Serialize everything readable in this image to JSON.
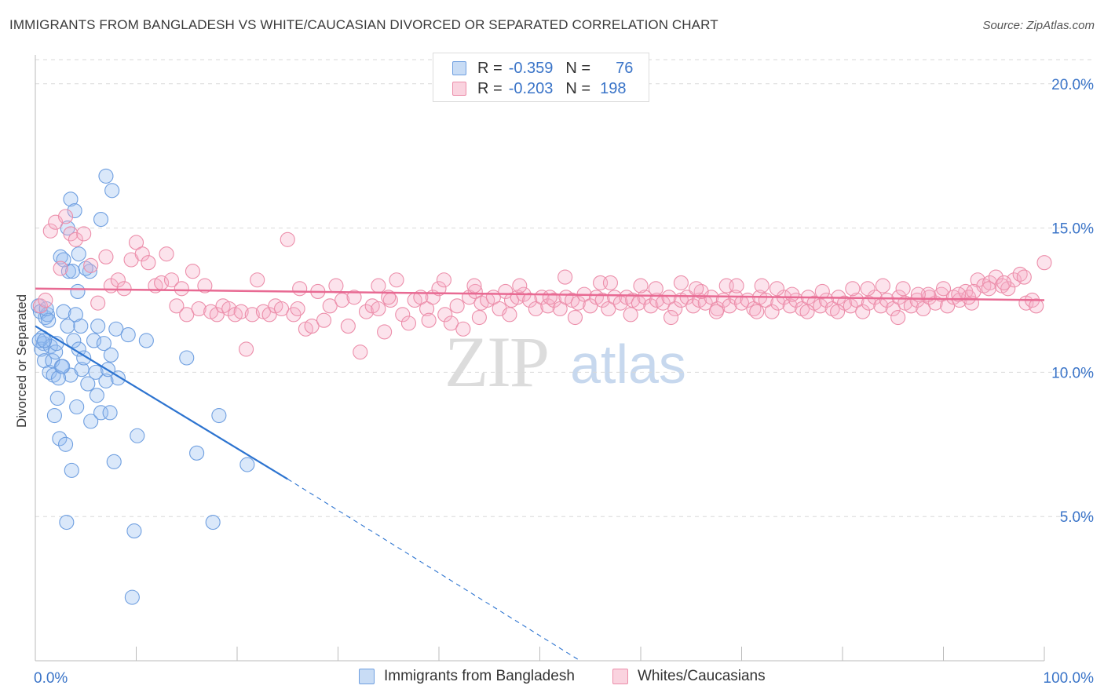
{
  "header": {
    "title": "IMMIGRANTS FROM BANGLADESH VS WHITE/CAUCASIAN DIVORCED OR SEPARATED CORRELATION CHART",
    "source": "Source: ZipAtlas.com"
  },
  "legend_top": {
    "rows": [
      {
        "r_label": "R =",
        "r_value": "-0.359",
        "n_label": "N =",
        "n_value": "76",
        "color": "#a9c8f0",
        "border": "#6f9fe0"
      },
      {
        "r_label": "R =",
        "r_value": "-0.203",
        "n_label": "N =",
        "n_value": "198",
        "color": "#f7bfd0",
        "border": "#ec8eaa"
      }
    ]
  },
  "legend_bottom": {
    "items": [
      {
        "label": "Immigrants from Bangladesh",
        "color": "#a9c8f0",
        "border": "#6f9fe0"
      },
      {
        "label": "Whites/Caucasians",
        "color": "#f7bfd0",
        "border": "#ec8eaa"
      }
    ]
  },
  "watermark": {
    "zip": "ZIP",
    "atlas": "atlas"
  },
  "colors": {
    "blue_fill": "rgba(150,190,240,0.35)",
    "blue_stroke": "#6f9fe0",
    "blue_line": "#2d74d0",
    "pink_fill": "rgba(245,175,200,0.35)",
    "pink_stroke": "#ec8eaa",
    "pink_line": "#e86a93",
    "tick_label": "#3a74c8",
    "grid": "#d9d9d9"
  },
  "chart_data": {
    "type": "scatter",
    "title": "IMMIGRANTS FROM BANGLADESH VS WHITE/CAUCASIAN DIVORCED OR SEPARATED CORRELATION CHART",
    "xlabel": "",
    "ylabel": "Divorced or Separated",
    "xlim": [
      0,
      100
    ],
    "ylim": [
      0,
      21
    ],
    "x_tick_labels": [
      {
        "value": 0,
        "label": "0.0%"
      },
      {
        "value": 100,
        "label": "100.0%"
      }
    ],
    "x_minor_ticks": [
      0,
      10,
      20,
      30,
      40,
      50,
      60,
      70,
      80,
      90,
      100
    ],
    "y_ticks": [
      {
        "value": 5,
        "label": "5.0%"
      },
      {
        "value": 10,
        "label": "10.0%"
      },
      {
        "value": 15,
        "label": "15.0%"
      },
      {
        "value": 20,
        "label": "20.0%"
      }
    ],
    "grid": true,
    "legend_position": "top-center",
    "series": [
      {
        "name": "Immigrants from Bangladesh",
        "r": -0.359,
        "n": 76,
        "trend": {
          "x0": 0,
          "y0": 11.6,
          "x1": 25,
          "y1": 6.3,
          "dashed_to_x": 54,
          "dashed_to_y": 0.0
        },
        "points": [
          [
            0.3,
            12.3
          ],
          [
            0.5,
            12.1
          ],
          [
            0.7,
            11.2
          ],
          [
            0.8,
            11.0
          ],
          [
            0.6,
            10.8
          ],
          [
            0.9,
            10.4
          ],
          [
            1.0,
            11.9
          ],
          [
            1.2,
            12.0
          ],
          [
            1.3,
            11.8
          ],
          [
            1.5,
            10.9
          ],
          [
            1.4,
            10.0
          ],
          [
            1.7,
            10.4
          ],
          [
            1.8,
            9.9
          ],
          [
            2.0,
            10.7
          ],
          [
            2.1,
            11.0
          ],
          [
            2.2,
            9.1
          ],
          [
            2.4,
            7.7
          ],
          [
            2.6,
            10.2
          ],
          [
            2.8,
            12.1
          ],
          [
            3.0,
            7.5
          ],
          [
            3.1,
            4.8
          ],
          [
            3.2,
            11.6
          ],
          [
            3.3,
            13.5
          ],
          [
            3.5,
            9.9
          ],
          [
            3.6,
            6.6
          ],
          [
            3.8,
            11.1
          ],
          [
            4.0,
            12.0
          ],
          [
            4.1,
            8.8
          ],
          [
            4.3,
            10.8
          ],
          [
            4.5,
            11.6
          ],
          [
            4.6,
            10.1
          ],
          [
            4.8,
            10.5
          ],
          [
            5.2,
            9.6
          ],
          [
            5.5,
            8.3
          ],
          [
            5.8,
            11.1
          ],
          [
            6.0,
            10.0
          ],
          [
            6.2,
            11.6
          ],
          [
            6.5,
            8.6
          ],
          [
            6.8,
            11.0
          ],
          [
            7.0,
            9.7
          ],
          [
            7.2,
            10.1
          ],
          [
            7.4,
            8.6
          ],
          [
            7.5,
            10.6
          ],
          [
            7.8,
            6.9
          ],
          [
            8.0,
            11.5
          ],
          [
            2.5,
            14.0
          ],
          [
            2.8,
            13.9
          ],
          [
            3.2,
            15.0
          ],
          [
            3.5,
            16.0
          ],
          [
            3.9,
            15.6
          ],
          [
            4.3,
            14.1
          ],
          [
            5.4,
            13.5
          ],
          [
            6.5,
            15.3
          ],
          [
            7.0,
            16.8
          ],
          [
            7.6,
            16.3
          ],
          [
            9.2,
            11.3
          ],
          [
            10.1,
            7.8
          ],
          [
            11.0,
            11.1
          ],
          [
            15.0,
            10.5
          ],
          [
            16.0,
            7.2
          ],
          [
            17.6,
            4.8
          ],
          [
            18.2,
            8.5
          ],
          [
            21.0,
            6.8
          ],
          [
            9.8,
            4.5
          ],
          [
            9.6,
            2.2
          ],
          [
            1.1,
            12.2
          ],
          [
            0.4,
            11.1
          ],
          [
            0.9,
            11.1
          ],
          [
            2.3,
            9.8
          ],
          [
            1.9,
            8.5
          ],
          [
            3.7,
            13.5
          ],
          [
            2.7,
            10.2
          ],
          [
            5.0,
            13.6
          ],
          [
            4.2,
            12.8
          ],
          [
            6.1,
            9.2
          ],
          [
            8.2,
            9.8
          ]
        ]
      },
      {
        "name": "Whites/Caucasians",
        "r": -0.203,
        "n": 198,
        "trend": {
          "x0": 0,
          "y0": 12.9,
          "x1": 100,
          "y1": 12.5
        },
        "points": [
          [
            0.5,
            12.3
          ],
          [
            1.0,
            12.5
          ],
          [
            1.5,
            14.9
          ],
          [
            2.0,
            15.2
          ],
          [
            2.5,
            13.6
          ],
          [
            3.0,
            15.4
          ],
          [
            3.5,
            14.8
          ],
          [
            4.0,
            14.6
          ],
          [
            4.8,
            14.8
          ],
          [
            5.5,
            13.7
          ],
          [
            6.2,
            12.4
          ],
          [
            7.0,
            14.0
          ],
          [
            7.5,
            13.0
          ],
          [
            8.2,
            13.2
          ],
          [
            8.8,
            12.9
          ],
          [
            9.5,
            13.9
          ],
          [
            10.0,
            14.5
          ],
          [
            10.6,
            14.1
          ],
          [
            11.2,
            13.8
          ],
          [
            11.9,
            13.0
          ],
          [
            12.5,
            13.1
          ],
          [
            13.0,
            14.1
          ],
          [
            13.5,
            13.2
          ],
          [
            14.0,
            12.3
          ],
          [
            14.5,
            12.9
          ],
          [
            15.0,
            12.0
          ],
          [
            15.6,
            13.5
          ],
          [
            16.2,
            12.2
          ],
          [
            16.8,
            13.0
          ],
          [
            17.4,
            12.1
          ],
          [
            18.0,
            12.0
          ],
          [
            18.6,
            12.3
          ],
          [
            19.2,
            12.2
          ],
          [
            19.8,
            12.0
          ],
          [
            20.4,
            12.1
          ],
          [
            20.9,
            10.8
          ],
          [
            21.5,
            12.0
          ],
          [
            22.0,
            13.2
          ],
          [
            22.6,
            12.1
          ],
          [
            23.2,
            12.0
          ],
          [
            23.8,
            12.3
          ],
          [
            24.4,
            12.2
          ],
          [
            25.0,
            14.6
          ],
          [
            25.6,
            12.0
          ],
          [
            26.2,
            12.9
          ],
          [
            26.8,
            11.5
          ],
          [
            27.4,
            11.6
          ],
          [
            28.0,
            12.8
          ],
          [
            28.6,
            11.8
          ],
          [
            29.2,
            12.3
          ],
          [
            29.8,
            13.0
          ],
          [
            30.4,
            12.5
          ],
          [
            31.0,
            11.6
          ],
          [
            31.6,
            12.6
          ],
          [
            32.2,
            10.7
          ],
          [
            32.8,
            12.1
          ],
          [
            33.4,
            12.3
          ],
          [
            34.0,
            12.2
          ],
          [
            34.6,
            11.4
          ],
          [
            35.2,
            12.5
          ],
          [
            35.8,
            13.2
          ],
          [
            36.4,
            12.0
          ],
          [
            37.0,
            11.7
          ],
          [
            37.6,
            12.5
          ],
          [
            38.2,
            12.6
          ],
          [
            38.8,
            12.2
          ],
          [
            39.4,
            12.6
          ],
          [
            40.0,
            12.9
          ],
          [
            40.6,
            12.0
          ],
          [
            41.2,
            11.7
          ],
          [
            41.8,
            12.3
          ],
          [
            42.4,
            11.5
          ],
          [
            43.0,
            12.6
          ],
          [
            43.6,
            12.8
          ],
          [
            44.2,
            12.4
          ],
          [
            44.8,
            12.5
          ],
          [
            45.4,
            12.6
          ],
          [
            46.0,
            12.2
          ],
          [
            46.6,
            12.8
          ],
          [
            47.2,
            12.5
          ],
          [
            47.8,
            12.6
          ],
          [
            48.4,
            12.7
          ],
          [
            49.0,
            12.5
          ],
          [
            49.6,
            12.2
          ],
          [
            50.2,
            12.6
          ],
          [
            50.8,
            12.3
          ],
          [
            51.4,
            12.5
          ],
          [
            52.0,
            12.2
          ],
          [
            52.6,
            12.6
          ],
          [
            53.2,
            12.5
          ],
          [
            53.8,
            12.4
          ],
          [
            54.4,
            12.7
          ],
          [
            55.0,
            12.3
          ],
          [
            55.6,
            12.6
          ],
          [
            56.2,
            12.5
          ],
          [
            56.8,
            12.2
          ],
          [
            57.4,
            12.6
          ],
          [
            58.0,
            12.4
          ],
          [
            58.6,
            12.6
          ],
          [
            59.2,
            12.5
          ],
          [
            59.8,
            12.4
          ],
          [
            60.4,
            12.6
          ],
          [
            61.0,
            12.3
          ],
          [
            61.6,
            12.5
          ],
          [
            62.2,
            12.4
          ],
          [
            62.8,
            12.6
          ],
          [
            63.4,
            12.2
          ],
          [
            64.0,
            12.5
          ],
          [
            64.6,
            12.6
          ],
          [
            65.2,
            12.3
          ],
          [
            65.8,
            12.5
          ],
          [
            66.4,
            12.4
          ],
          [
            67.0,
            12.6
          ],
          [
            67.6,
            12.2
          ],
          [
            68.2,
            12.5
          ],
          [
            68.8,
            12.3
          ],
          [
            69.4,
            12.6
          ],
          [
            70.0,
            12.4
          ],
          [
            70.6,
            12.5
          ],
          [
            71.2,
            12.2
          ],
          [
            71.8,
            12.6
          ],
          [
            72.4,
            12.5
          ],
          [
            73.0,
            12.1
          ],
          [
            73.6,
            12.4
          ],
          [
            74.2,
            12.6
          ],
          [
            74.8,
            12.3
          ],
          [
            75.4,
            12.5
          ],
          [
            76.0,
            12.2
          ],
          [
            76.6,
            12.6
          ],
          [
            77.2,
            12.4
          ],
          [
            77.8,
            12.3
          ],
          [
            78.4,
            12.5
          ],
          [
            79.0,
            12.2
          ],
          [
            79.6,
            12.6
          ],
          [
            80.2,
            12.4
          ],
          [
            80.8,
            12.3
          ],
          [
            81.4,
            12.5
          ],
          [
            82.0,
            12.1
          ],
          [
            82.6,
            12.4
          ],
          [
            83.2,
            12.6
          ],
          [
            83.8,
            12.3
          ],
          [
            84.4,
            12.5
          ],
          [
            85.0,
            12.2
          ],
          [
            85.6,
            12.6
          ],
          [
            86.2,
            12.4
          ],
          [
            86.8,
            12.3
          ],
          [
            87.4,
            12.5
          ],
          [
            88.0,
            12.2
          ],
          [
            88.6,
            12.6
          ],
          [
            89.2,
            12.4
          ],
          [
            89.8,
            12.7
          ],
          [
            90.4,
            12.3
          ],
          [
            91.0,
            12.6
          ],
          [
            91.6,
            12.5
          ],
          [
            92.2,
            12.8
          ],
          [
            92.8,
            12.4
          ],
          [
            93.4,
            13.2
          ],
          [
            94.0,
            13.0
          ],
          [
            94.6,
            13.1
          ],
          [
            95.2,
            13.3
          ],
          [
            95.8,
            13.0
          ],
          [
            96.4,
            12.9
          ],
          [
            97.0,
            13.2
          ],
          [
            97.6,
            13.4
          ],
          [
            98.2,
            12.4
          ],
          [
            98.8,
            12.5
          ],
          [
            99.2,
            12.3
          ],
          [
            100.0,
            13.8
          ],
          [
            26.0,
            12.2
          ],
          [
            34.0,
            13.0
          ],
          [
            40.5,
            13.2
          ],
          [
            44.0,
            11.9
          ],
          [
            48.0,
            13.0
          ],
          [
            52.5,
            13.3
          ],
          [
            56.0,
            13.1
          ],
          [
            60.0,
            13.0
          ],
          [
            64.0,
            13.1
          ],
          [
            66.0,
            12.8
          ],
          [
            68.5,
            13.0
          ],
          [
            72.0,
            13.0
          ],
          [
            75.0,
            12.7
          ],
          [
            78.0,
            12.8
          ],
          [
            81.0,
            12.9
          ],
          [
            84.0,
            13.0
          ],
          [
            86.0,
            12.9
          ],
          [
            88.5,
            12.7
          ],
          [
            90.0,
            12.9
          ],
          [
            92.5,
            12.6
          ],
          [
            94.5,
            12.9
          ],
          [
            96.0,
            13.1
          ],
          [
            98.0,
            13.3
          ],
          [
            35.0,
            12.6
          ],
          [
            39.0,
            11.8
          ],
          [
            43.5,
            13.0
          ],
          [
            47.0,
            12.0
          ],
          [
            51.0,
            12.6
          ],
          [
            53.5,
            11.9
          ],
          [
            57.0,
            13.1
          ],
          [
            59.0,
            12.0
          ],
          [
            61.5,
            12.9
          ],
          [
            63.0,
            11.9
          ],
          [
            65.5,
            12.9
          ],
          [
            67.5,
            12.1
          ],
          [
            69.5,
            13.0
          ],
          [
            71.5,
            12.1
          ],
          [
            73.5,
            12.9
          ],
          [
            76.5,
            12.1
          ],
          [
            79.5,
            12.1
          ],
          [
            82.5,
            12.9
          ],
          [
            85.5,
            11.9
          ],
          [
            87.5,
            12.7
          ],
          [
            91.5,
            12.7
          ],
          [
            93.0,
            12.8
          ]
        ]
      }
    ]
  }
}
